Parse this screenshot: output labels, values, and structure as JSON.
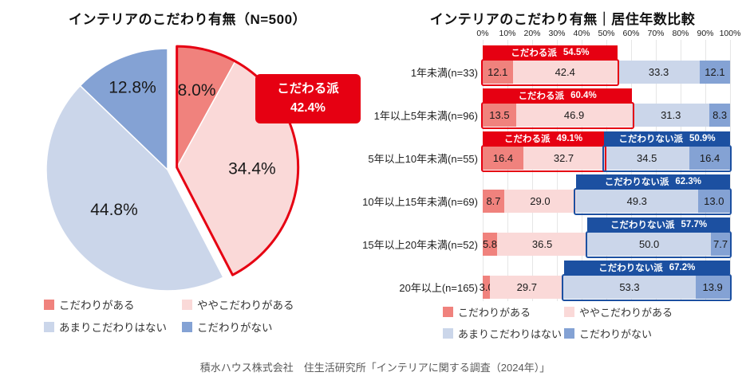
{
  "colors": {
    "aware": "#F0827D",
    "somewhat": "#FAD9D8",
    "not_much": "#CBD6EA",
    "none": "#84A2D4",
    "accent_red": "#E60012",
    "accent_blue": "#1C50A1"
  },
  "legend": {
    "items": [
      {
        "label": "こだわりがある",
        "color_key": "aware"
      },
      {
        "label": "ややこだわりがある",
        "color_key": "somewhat"
      },
      {
        "label": "あまりこだわりはない",
        "color_key": "not_much"
      },
      {
        "label": "こだわりがない",
        "color_key": "none"
      }
    ]
  },
  "chart_data": [
    {
      "type": "pie",
      "title": "インテリアのこだわり有無（N=500）",
      "labels": [
        "こだわりがある",
        "ややこだわりがある",
        "あまりこだわりはない",
        "こだわりがない"
      ],
      "values": [
        8.0,
        34.4,
        44.8,
        12.8
      ],
      "value_labels": [
        "8.0%",
        "34.4%",
        "44.8%",
        "12.8%"
      ],
      "callout": {
        "line1": "こだわる派",
        "line2": "42.4%"
      },
      "exploded_group": [
        0,
        1
      ],
      "start_angle_deg": -90,
      "direction": "clockwise"
    },
    {
      "type": "bar",
      "stacked": true,
      "orientation": "horizontal",
      "title": "インテリアのこだわり有無｜居住年数比較",
      "axis_ticks": [
        "0%",
        "10%",
        "20%",
        "30%",
        "40%",
        "50%",
        "60%",
        "70%",
        "80%",
        "90%",
        "100%"
      ],
      "xlim": [
        0,
        100
      ],
      "categories": [
        "1年未満(n=33)",
        "1年以上5年未満(n=96)",
        "5年以上10年未満(n=55)",
        "10年以上15年未満(n=69)",
        "15年以上20年未満(n=52)",
        "20年以上(n=165)"
      ],
      "series": [
        {
          "name": "こだわりがある",
          "values": [
            12.1,
            13.5,
            16.4,
            8.7,
            5.8,
            3.0
          ]
        },
        {
          "name": "ややこだわりがある",
          "values": [
            42.4,
            46.9,
            32.7,
            29.0,
            36.5,
            29.7
          ]
        },
        {
          "name": "あまりこだわりはない",
          "values": [
            33.3,
            31.3,
            34.5,
            49.3,
            50.0,
            53.3
          ]
        },
        {
          "name": "こだわりがない",
          "values": [
            12.1,
            8.3,
            16.4,
            13.0,
            7.7,
            13.9
          ]
        }
      ],
      "badges": [
        {
          "row": 0,
          "type": "red",
          "label": "こだわる派",
          "value": "54.5%"
        },
        {
          "row": 1,
          "type": "red",
          "label": "こだわる派",
          "value": "60.4%"
        },
        {
          "row": 2,
          "type": "red",
          "label": "こだわる派",
          "value": "49.1%"
        },
        {
          "row": 2,
          "type": "blue",
          "label": "こだわりない派",
          "value": "50.9%"
        },
        {
          "row": 3,
          "type": "blue",
          "label": "こだわりない派",
          "value": "62.3%"
        },
        {
          "row": 4,
          "type": "blue",
          "label": "こだわりない派",
          "value": "57.7%"
        },
        {
          "row": 5,
          "type": "blue",
          "label": "こだわりない派",
          "value": "67.2%"
        }
      ],
      "outlines": [
        {
          "row": 0,
          "group": "red"
        },
        {
          "row": 1,
          "group": "red"
        },
        {
          "row": 2,
          "group": "red"
        },
        {
          "row": 2,
          "group": "blue"
        },
        {
          "row": 3,
          "group": "blue"
        },
        {
          "row": 4,
          "group": "blue"
        },
        {
          "row": 5,
          "group": "blue"
        }
      ]
    }
  ],
  "footer": {
    "source": "積水ハウス株式会社　住生活研究所「インテリアに関する調査（2024年）」"
  }
}
